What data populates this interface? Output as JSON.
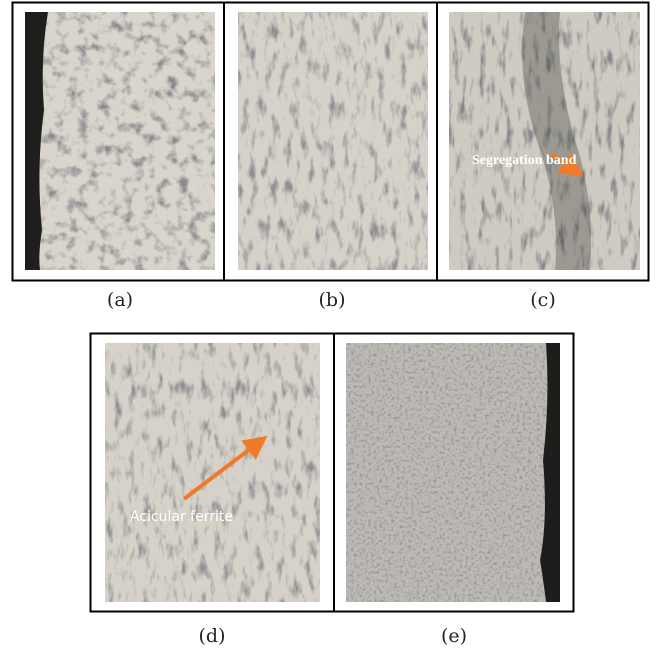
{
  "panels": [
    {
      "label": "(a)"
    },
    {
      "label": "(b)"
    },
    {
      "label": "(c)",
      "annotation": "Segregation band"
    },
    {
      "label": "(d)",
      "annotation": "Acicular ferrite"
    },
    {
      "label": "(e)"
    }
  ]
}
